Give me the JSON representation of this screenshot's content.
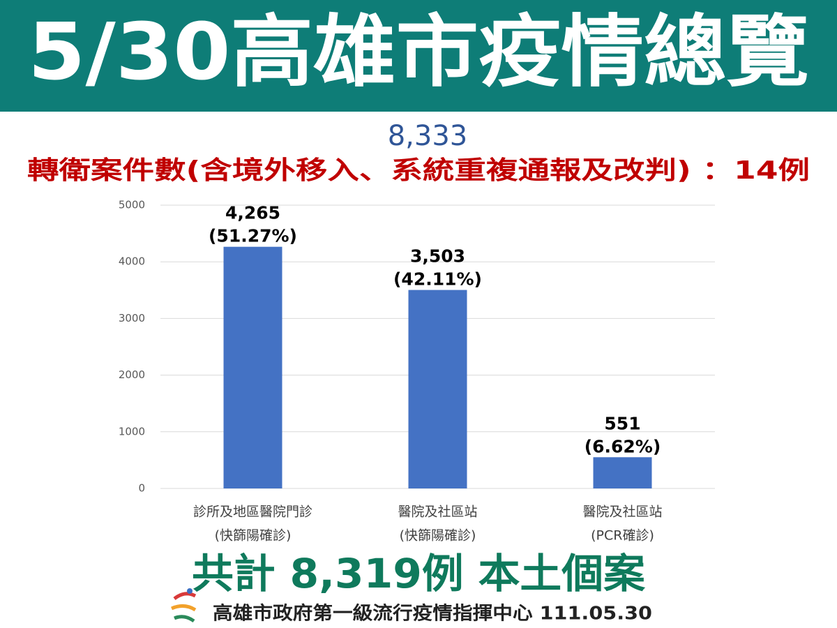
{
  "header": {
    "title": "5/30高雄市疫情總覽"
  },
  "summary": {
    "total": "8,333",
    "transfer_note": "轉衛案件數(含境外移入、系統重複通報及改判) ：14例"
  },
  "chart_data": {
    "type": "bar",
    "categories": [
      [
        "診所及地區醫院門診",
        "(快篩陽確診)"
      ],
      [
        "醫院及社區站",
        "(快篩陽確診)"
      ],
      [
        "醫院及社區站",
        "(PCR確診)"
      ]
    ],
    "values": [
      4265,
      3503,
      551
    ],
    "value_labels": [
      [
        "4,265",
        "(51.27%)"
      ],
      [
        "3,503",
        "(42.11%)"
      ],
      [
        "551",
        "(6.62%)"
      ]
    ],
    "color": "#4472c4",
    "ylim": [
      0,
      5000
    ],
    "yticks": [
      0,
      1000,
      2000,
      3000,
      4000,
      5000
    ],
    "grid": true
  },
  "footer": {
    "total_cases": "共計 8,319例 本土個案",
    "source": "高雄市政府第一級流行疫情指揮中心 111.05.30"
  }
}
